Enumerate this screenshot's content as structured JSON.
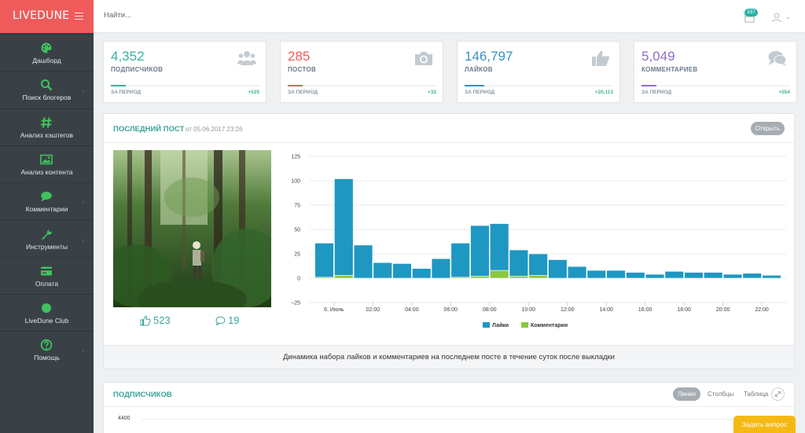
{
  "app": {
    "brand": "LIVEDUNE"
  },
  "sidebar": {
    "items": [
      {
        "label": "Дашборд",
        "icon": "palette-icon",
        "has_submenu": false
      },
      {
        "label": "Поиск блогеров",
        "icon": "search-icon",
        "has_submenu": true
      },
      {
        "label": "Анализ хэштегов",
        "icon": "hashtag-icon",
        "has_submenu": false
      },
      {
        "label": "Анализ контента",
        "icon": "image-icon",
        "has_submenu": false
      },
      {
        "label": "Комментарии",
        "icon": "chat-icon",
        "has_submenu": true
      },
      {
        "label": "Инструменты",
        "icon": "wrench-icon",
        "has_submenu": true
      },
      {
        "label": "Оплата",
        "icon": "credit-card-icon",
        "has_submenu": false
      },
      {
        "label": "LiveDune Club",
        "icon": "circle-icon",
        "has_submenu": false
      },
      {
        "label": "Помощь",
        "icon": "help-icon",
        "has_submenu": true
      }
    ],
    "icon_color": "#3fc35f"
  },
  "header": {
    "search_placeholder": "Найти...",
    "notifications_count": "337"
  },
  "stats": [
    {
      "value": "4,352",
      "caption": "ПОДПИСЧИКОВ",
      "period": "ЗА ПЕРИОД",
      "delta": "+525",
      "color": "#35b0a0",
      "icon": "users-icon",
      "progress": 0.1
    },
    {
      "value": "285",
      "caption": "ПОСТОВ",
      "period": "ЗА ПЕРИОД",
      "delta": "+32",
      "color": "#ef5b5b",
      "icon": "camera-icon",
      "progress": 0.1
    },
    {
      "value": "146,797",
      "caption": "ЛАЙКОВ",
      "period": "ЗА ПЕРИОД",
      "delta": "+20,113",
      "color": "#3a8fc4",
      "icon": "thumbs-up-icon",
      "progress": 0.13
    },
    {
      "value": "5,049",
      "caption": "КОММЕНТАРИЕВ",
      "period": "ЗА ПЕРИОД",
      "delta": "+554",
      "color": "#8b6fc6",
      "icon": "comments-icon",
      "progress": 0.1
    }
  ],
  "post": {
    "title": "ПОСЛЕДНИЙ ПОСТ",
    "date": "от 05.06.2017 23:26",
    "open_label": "Открыть",
    "likes": "523",
    "comments": "19",
    "footer": "Динамика набора лайков и комментариев на последнем посте в течение суток после выкладки"
  },
  "subscribers": {
    "title": "ПОДПИСЧИКОВ",
    "tabs": [
      "Линия",
      "Столбцы",
      "Таблица"
    ],
    "active_tab": "Линия",
    "y_tick": "4400"
  },
  "ask_button": "Задать вопрос",
  "chart_data": {
    "type": "bar",
    "stacked": true,
    "ylim": [
      -25,
      125
    ],
    "y_ticks": [
      "125",
      "100",
      "75",
      "50",
      "25",
      "0",
      "−25"
    ],
    "x_tick_labels": [
      "6. Июнь",
      "02:00",
      "04:00",
      "06:00",
      "08:00",
      "10:00",
      "12:00",
      "14:00",
      "16:00",
      "18:00",
      "20:00",
      "22:00"
    ],
    "x_tick_positions": [
      1,
      3,
      5,
      7,
      9,
      11,
      13,
      15,
      17,
      19,
      21,
      23
    ],
    "series": [
      {
        "name": "Лайки",
        "color": "#1e97c2",
        "values": [
          35,
          99,
          34,
          16,
          15,
          10,
          20,
          35,
          52,
          48,
          27,
          22,
          19,
          12,
          8,
          8,
          6,
          4,
          7,
          6,
          6,
          4,
          5,
          3
        ]
      },
      {
        "name": "Комментарии",
        "color": "#8dc63f",
        "values": [
          1,
          3,
          0,
          0,
          0,
          0,
          0,
          1,
          2,
          8,
          2,
          3,
          0,
          0,
          0,
          0,
          0,
          0,
          0,
          0,
          0,
          0,
          0,
          0
        ]
      }
    ],
    "legend_position": "bottom"
  }
}
